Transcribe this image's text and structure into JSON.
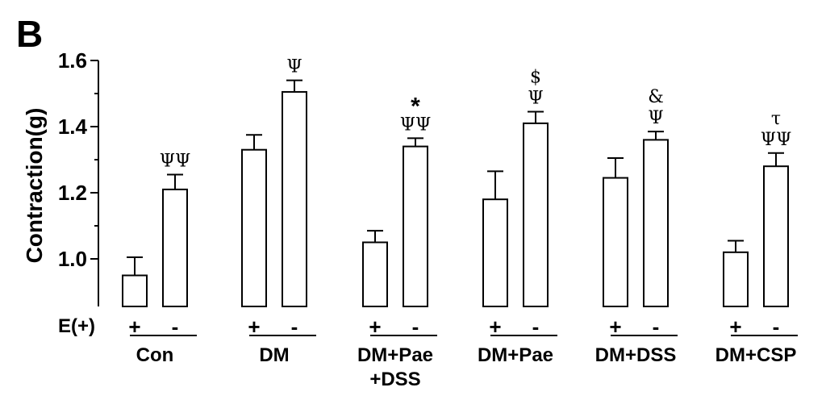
{
  "chart_data": {
    "type": "bar",
    "panel_label": "B",
    "ylabel": "Contraction(g)",
    "ylim": [
      0.85,
      1.6
    ],
    "yticks": [
      "1.0",
      "1.2",
      "1.4",
      "1.6"
    ],
    "ytick_values": [
      1.0,
      1.2,
      1.4,
      1.6
    ],
    "treatment_label": "E(+)",
    "treatment_levels": [
      "+",
      "-"
    ],
    "groups": [
      {
        "name": [
          "Con"
        ],
        "values": [
          0.95,
          1.21
        ],
        "errors": [
          0.055,
          0.045
        ],
        "marks": [
          "",
          "ΨΨ"
        ]
      },
      {
        "name": [
          "DM"
        ],
        "values": [
          1.33,
          1.505
        ],
        "errors": [
          0.045,
          0.035
        ],
        "marks": [
          "",
          "Ψ"
        ]
      },
      {
        "name": [
          "DM+Pae",
          "+DSS"
        ],
        "values": [
          1.05,
          1.34
        ],
        "errors": [
          0.035,
          0.025
        ],
        "marks": [
          "",
          "*\nΨΨ"
        ]
      },
      {
        "name": [
          "DM+Pae"
        ],
        "values": [
          1.18,
          1.41
        ],
        "errors": [
          0.085,
          0.035
        ],
        "marks": [
          "",
          "$\nΨ"
        ]
      },
      {
        "name": [
          "DM+DSS"
        ],
        "values": [
          1.245,
          1.36
        ],
        "errors": [
          0.06,
          0.025
        ],
        "marks": [
          "",
          "&\nΨ"
        ]
      },
      {
        "name": [
          "DM+CSP"
        ],
        "values": [
          1.02,
          1.28
        ],
        "errors": [
          0.035,
          0.04
        ],
        "marks": [
          "",
          "τ\nΨΨ"
        ]
      }
    ],
    "grid": false,
    "legend": "none"
  }
}
